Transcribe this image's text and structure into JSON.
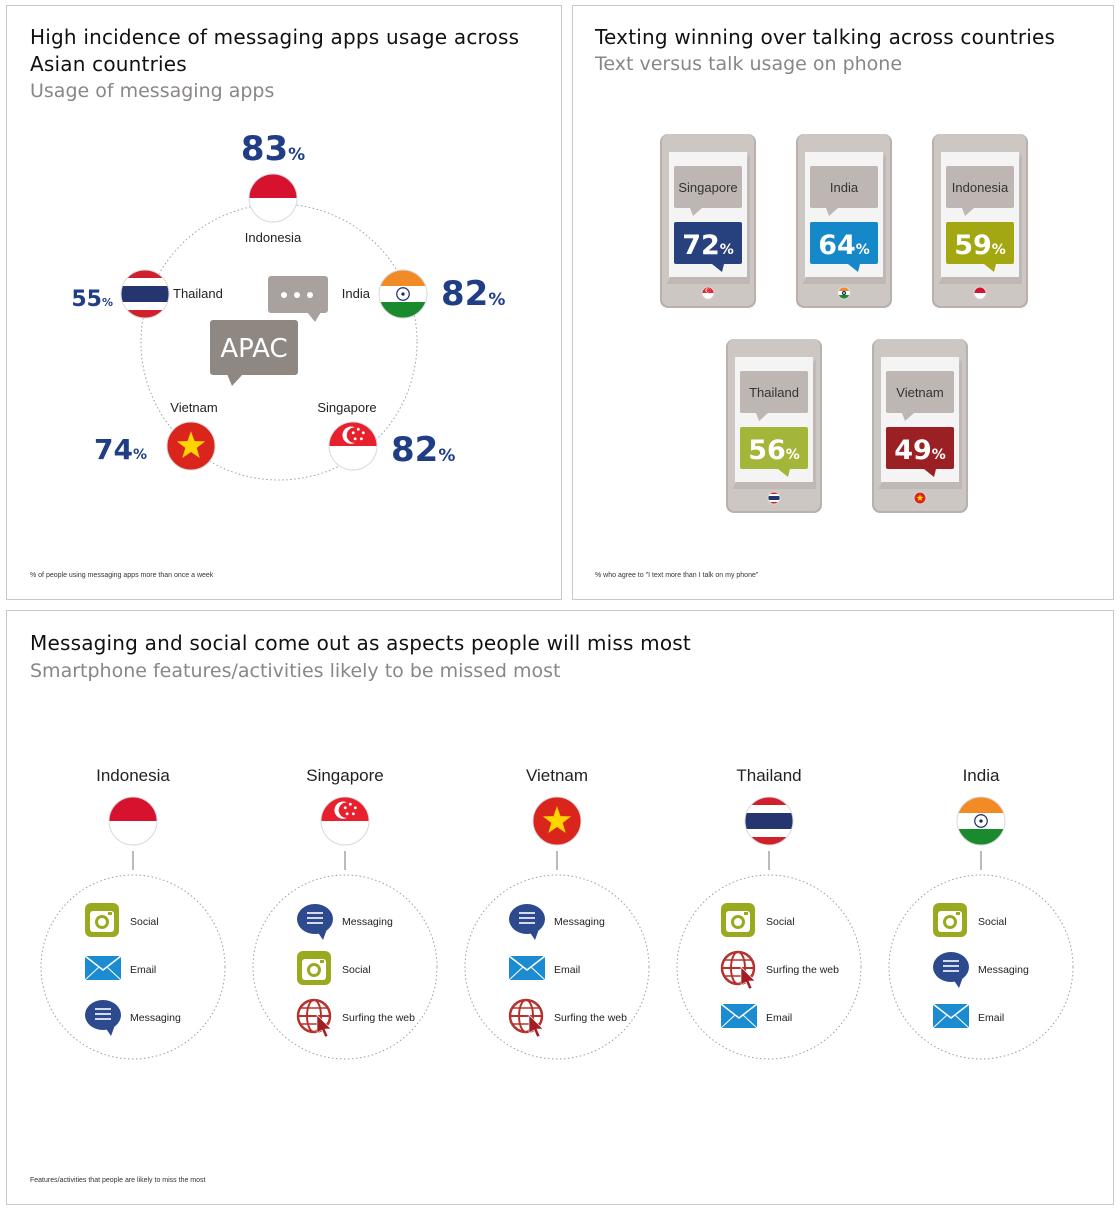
{
  "panel_usage": {
    "title_line1": "High incidence of messaging apps usage across",
    "title_line2": "Asian countries",
    "subtitle": "Usage of messaging apps",
    "center_label": "APAC",
    "footnote": "% of people using messaging apps more than once a week"
  },
  "panel_text": {
    "title": "Texting winning over talking across countries",
    "subtitle": "Text versus talk usage on phone",
    "footnote": "% who agree to \"I text more than I talk on my phone\""
  },
  "panel_miss": {
    "title": "Messaging and social come out as aspects people will miss most",
    "subtitle": "Smartphone features/activities likely to be missed most",
    "footnote": "Features/activities that people are likely to miss the most"
  },
  "percent_sign": "%",
  "chart_data": [
    {
      "type": "bar",
      "title": "High incidence of messaging apps usage across Asian countries",
      "subtitle": "Usage of messaging apps",
      "categories": [
        "Indonesia",
        "India",
        "Singapore",
        "Vietnam",
        "Thailand"
      ],
      "values": [
        83,
        82,
        82,
        74,
        55
      ],
      "unit": "%"
    },
    {
      "type": "bar",
      "title": "Texting winning over talking across countries",
      "subtitle": "Text versus talk usage on phone",
      "categories": [
        "Singapore",
        "India",
        "Indonesia",
        "Thailand",
        "Vietnam"
      ],
      "values": [
        72,
        64,
        59,
        56,
        49
      ],
      "unit": "%",
      "colors": [
        "#27407e",
        "#1588c9",
        "#a3a812",
        "#a4b63a",
        "#9b2023"
      ]
    },
    {
      "type": "table",
      "title": "Messaging and social come out as aspects people will miss most",
      "subtitle": "Smartphone features/activities likely to be missed most",
      "columns": [
        "Indonesia",
        "Singapore",
        "Vietnam",
        "Thailand",
        "India"
      ],
      "rows": [
        [
          "Social",
          "Messaging",
          "Messaging",
          "Social",
          "Social"
        ],
        [
          "Email",
          "Social",
          "Email",
          "Surfing the web",
          "Messaging"
        ],
        [
          "Messaging",
          "Surfing the web",
          "Surfing the web",
          "Email",
          "Email"
        ]
      ]
    }
  ],
  "usage_ring": [
    {
      "country": "Indonesia",
      "flag": "indonesia",
      "value": "83"
    },
    {
      "country": "India",
      "flag": "india",
      "value": "82"
    },
    {
      "country": "Singapore",
      "flag": "singapore",
      "value": "82"
    },
    {
      "country": "Vietnam",
      "flag": "vietnam",
      "value": "74"
    },
    {
      "country": "Thailand",
      "flag": "thailand",
      "value": "55"
    }
  ],
  "phones": [
    {
      "country": "Singapore",
      "value": "72",
      "color": "#27407e",
      "flag": "singapore"
    },
    {
      "country": "India",
      "value": "64",
      "color": "#1588c9",
      "flag": "india"
    },
    {
      "country": "Indonesia",
      "value": "59",
      "color": "#a3a812",
      "flag": "indonesia"
    },
    {
      "country": "Thailand",
      "value": "56",
      "color": "#a4b63a",
      "flag": "thailand"
    },
    {
      "country": "Vietnam",
      "value": "49",
      "color": "#9b2023",
      "flag": "vietnam"
    }
  ],
  "miss_columns": [
    {
      "country": "Indonesia",
      "flag": "indonesia",
      "items": [
        {
          "label": "Social",
          "icon": "social-icon"
        },
        {
          "label": "Email",
          "icon": "email-icon"
        },
        {
          "label": "Messaging",
          "icon": "messaging-icon"
        }
      ]
    },
    {
      "country": "Singapore",
      "flag": "singapore",
      "items": [
        {
          "label": "Messaging",
          "icon": "messaging-icon"
        },
        {
          "label": "Social",
          "icon": "social-icon"
        },
        {
          "label": "Surfing the web",
          "icon": "web-icon"
        }
      ]
    },
    {
      "country": "Vietnam",
      "flag": "vietnam",
      "items": [
        {
          "label": "Messaging",
          "icon": "messaging-icon"
        },
        {
          "label": "Email",
          "icon": "email-icon"
        },
        {
          "label": "Surfing the web",
          "icon": "web-icon"
        }
      ]
    },
    {
      "country": "Thailand",
      "flag": "thailand",
      "items": [
        {
          "label": "Social",
          "icon": "social-icon"
        },
        {
          "label": "Surfing the web",
          "icon": "web-icon"
        },
        {
          "label": "Email",
          "icon": "email-icon"
        }
      ]
    },
    {
      "country": "India",
      "flag": "india",
      "items": [
        {
          "label": "Social",
          "icon": "social-icon"
        },
        {
          "label": "Messaging",
          "icon": "messaging-icon"
        },
        {
          "label": "Email",
          "icon": "email-icon"
        }
      ]
    }
  ],
  "colors": {
    "pct_blue": "#1f3e86",
    "bubble_grey": "#8f8782",
    "phone_grey": "#c9c3bf",
    "social_green": "#9aaa1e",
    "email_blue": "#1c8cd2",
    "messaging_navy": "#2d4a8f",
    "web_red": "#b5332d"
  }
}
